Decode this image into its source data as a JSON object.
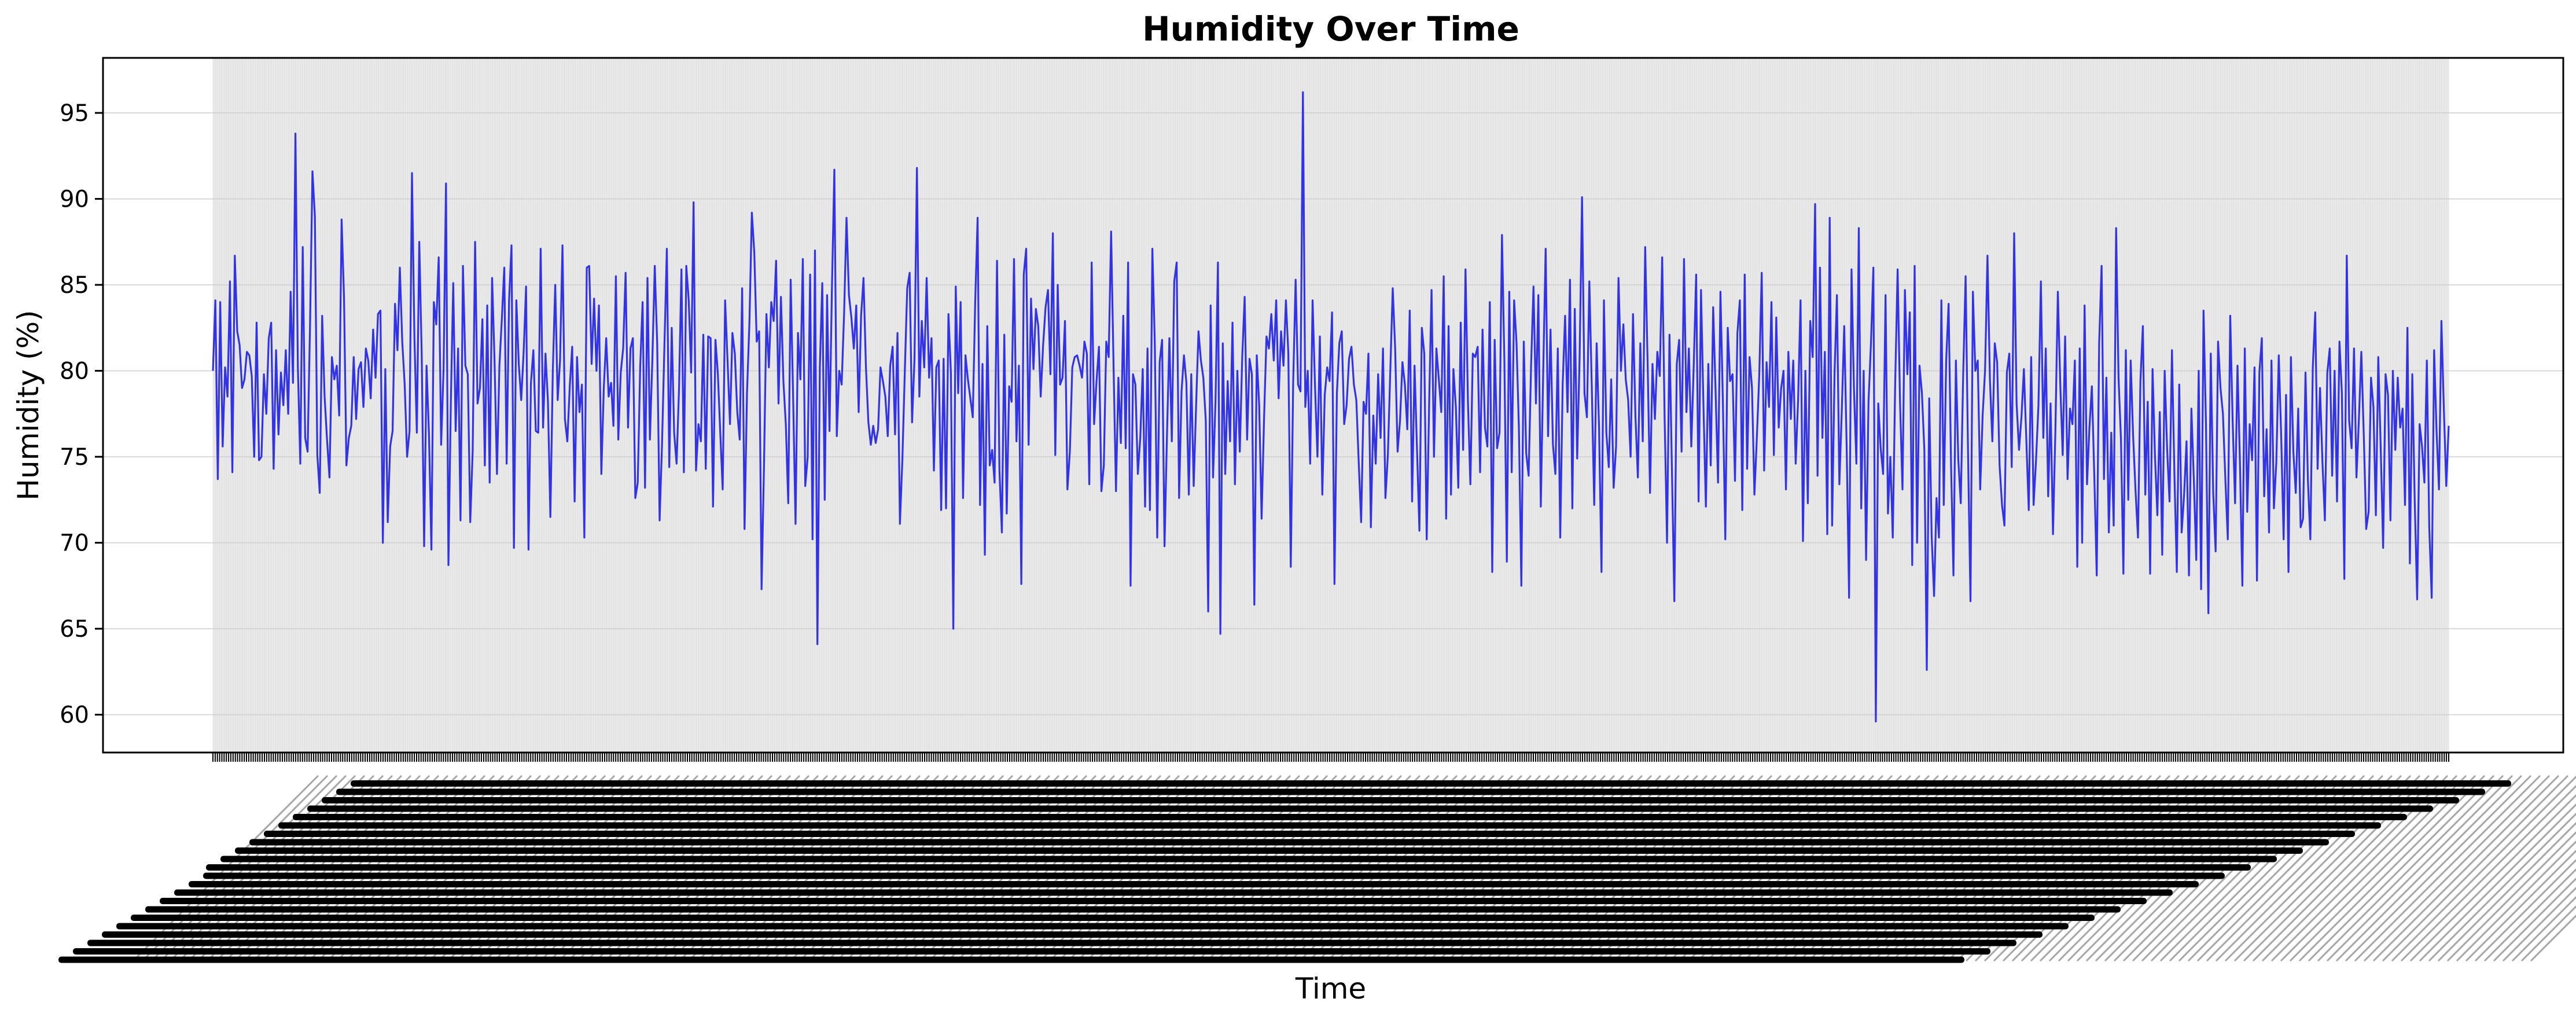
{
  "chart_data": {
    "type": "line",
    "title": "Humidity Over Time",
    "xlabel": "Time",
    "ylabel": "Humidity (%)",
    "ylim": [
      57.8,
      98.2
    ],
    "yticks": [
      60,
      65,
      70,
      75,
      80,
      85,
      90,
      95
    ],
    "grid": true,
    "legend": "none",
    "colors": {
      "line": "#3333e6",
      "plot_background": "#e9e9e9",
      "grid": "#cfcfcf"
    },
    "x_tick_labels_note": "",
    "series": [
      {
        "name": "",
        "values": [
          80.0,
          84.1,
          73.7,
          84.0,
          75.6,
          80.2,
          78.5,
          85.2,
          74.1,
          86.7,
          82.3,
          81.5,
          79.0,
          79.5,
          81.1,
          80.9,
          79.7,
          75.0,
          82.8,
          74.8,
          75.0,
          79.8,
          77.5,
          81.9,
          82.8,
          74.3,
          81.2,
          76.3,
          79.9,
          78.0,
          81.2,
          77.5,
          84.6,
          79.3,
          93.8,
          80.2,
          74.6,
          87.2,
          76.1,
          75.3,
          82.6,
          91.6,
          89.0,
          75.1,
          72.9,
          83.2,
          78.5,
          76.0,
          73.8,
          80.8,
          79.5,
          80.3,
          77.4,
          88.8,
          84.2,
          74.5,
          76.1,
          76.8,
          80.8,
          77.2,
          80.1,
          80.5,
          77.9,
          81.3,
          80.6,
          78.4,
          82.4,
          79.6,
          83.3,
          83.5,
          70.0,
          80.1,
          71.2,
          75.6,
          76.5,
          83.9,
          81.2,
          86.0,
          81.7,
          79.2,
          75.0,
          76.5,
          91.5,
          82.0,
          76.4,
          87.5,
          81.0,
          69.8,
          80.3,
          76.3,
          69.6,
          84.0,
          82.7,
          86.6,
          75.7,
          80.1,
          90.9,
          68.7,
          78.2,
          85.1,
          76.5,
          81.3,
          71.3,
          86.1,
          80.3,
          79.8,
          71.2,
          75.3,
          87.5,
          78.1,
          79.0,
          83.0,
          74.5,
          83.8,
          73.5,
          85.4,
          80.6,
          74.0,
          80.3,
          83.0,
          86.0,
          74.6,
          84.1,
          87.3,
          69.7,
          84.1,
          80.4,
          78.3,
          81.1,
          84.9,
          69.6,
          79.3,
          81.2,
          76.5,
          76.4,
          87.1,
          76.7,
          81.0,
          78.2,
          71.5,
          80.0,
          85.0,
          78.3,
          80.6,
          87.3,
          77.2,
          75.9,
          79.1,
          81.4,
          72.4,
          80.8,
          77.6,
          79.2,
          70.3,
          86.0,
          86.1,
          80.4,
          84.2,
          80.0,
          83.8,
          74.0,
          79.0,
          81.9,
          78.5,
          79.3,
          76.8,
          85.5,
          76.0,
          79.9,
          81.3,
          85.7,
          76.7,
          81.3,
          81.9,
          72.6,
          73.5,
          80.2,
          84.0,
          73.2,
          85.4,
          76.0,
          80.6,
          86.1,
          81.6,
          71.3,
          75.8,
          81.6,
          87.1,
          74.4,
          82.5,
          76.4,
          74.6,
          78.9,
          85.9,
          74.1,
          86.1,
          84.1,
          79.9,
          89.8,
          74.2,
          76.9,
          75.9,
          82.1,
          74.3,
          82.0,
          81.9,
          72.1,
          81.8,
          79.8,
          76.4,
          73.1,
          84.1,
          80.6,
          76.9,
          82.2,
          81.0,
          77.6,
          76.0,
          84.8,
          70.8,
          78.7,
          82.8,
          89.2,
          86.9,
          81.7,
          82.3,
          67.3,
          74.5,
          83.3,
          80.2,
          84.0,
          82.9,
          86.4,
          78.1,
          84.3,
          79.4,
          76.9,
          72.3,
          85.3,
          78.5,
          71.1,
          82.2,
          79.5,
          86.5,
          73.3,
          75.0,
          85.6,
          70.2,
          87.0,
          64.1,
          80.2,
          85.1,
          72.5,
          84.4,
          76.5,
          84.8,
          91.7,
          76.2,
          80.0,
          79.2,
          83.3,
          88.9,
          84.4,
          83.1,
          81.3,
          83.8,
          77.6,
          83.2,
          85.4,
          80.2,
          77.0,
          75.7,
          76.8,
          75.8,
          76.6,
          80.2,
          79.4,
          78.5,
          76.2,
          80.3,
          81.4,
          76.3,
          82.2,
          71.1,
          74.8,
          79.9,
          84.8,
          85.7,
          77.0,
          80.7,
          91.8,
          78.5,
          82.9,
          80.2,
          85.4,
          79.6,
          81.9,
          74.2,
          80.2,
          80.6,
          71.9,
          80.7,
          72.0,
          83.3,
          79.9,
          65.0,
          84.9,
          78.7,
          84.0,
          72.6,
          80.9,
          79.5,
          78.4,
          77.3,
          84.0,
          88.9,
          72.2,
          80.4,
          69.3,
          82.6,
          74.5,
          75.4,
          73.5,
          86.4,
          74.2,
          70.6,
          82.1,
          71.7,
          79.1,
          78.2,
          86.5,
          75.9,
          80.3,
          67.6,
          85.6,
          87.1,
          75.7,
          84.2,
          80.1,
          83.6,
          82.6,
          78.5,
          81.5,
          83.7,
          84.7,
          79.8,
          88.0,
          75.1,
          85.0,
          79.2,
          79.6,
          82.9,
          73.1,
          75.3,
          80.2,
          80.8,
          80.9,
          80.3,
          79.6,
          81.7,
          81.0,
          73.4,
          86.3,
          76.9,
          79.4,
          81.4,
          73.0,
          74.5,
          81.7,
          80.8,
          88.1,
          80.3,
          73.0,
          79.6,
          75.8,
          83.2,
          75.5,
          86.3,
          67.5,
          79.8,
          79.2,
          74.0,
          76.1,
          80.1,
          72.1,
          81.3,
          71.9,
          87.1,
          81.6,
          70.3,
          80.5,
          81.8,
          69.8,
          76.2,
          81.9,
          75.9,
          85.2,
          86.3,
          72.6,
          78.8,
          80.9,
          79.3,
          72.8,
          79.8,
          73.3,
          78.0,
          82.3,
          80.6,
          79.6,
          77.1,
          66.0,
          83.8,
          73.8,
          78.2,
          86.3,
          64.7,
          81.6,
          74.0,
          79.4,
          75.9,
          82.8,
          73.4,
          80.0,
          75.3,
          80.8,
          84.3,
          76.0,
          80.7,
          79.8,
          66.4,
          80.9,
          78.0,
          71.4,
          77.2,
          82.0,
          81.3,
          83.3,
          80.6,
          84.1,
          78.4,
          82.3,
          80.3,
          84.1,
          81.0,
          68.6,
          79.4,
          85.3,
          79.2,
          78.8,
          96.2,
          77.9,
          80.0,
          74.6,
          84.1,
          79.1,
          75.0,
          82.0,
          72.8,
          78.6,
          80.2,
          79.4,
          83.4,
          67.6,
          78.7,
          81.6,
          82.3,
          76.9,
          78.0,
          80.7,
          81.4,
          79.2,
          78.3,
          74.7,
          71.2,
          78.2,
          77.5,
          81.0,
          70.9,
          77.4,
          74.6,
          79.8,
          76.1,
          81.3,
          72.6,
          75.1,
          80.0,
          84.8,
          81.3,
          75.3,
          77.1,
          80.5,
          79.2,
          76.6,
          83.5,
          72.4,
          80.3,
          75.5,
          70.7,
          82.5,
          81.0,
          70.2,
          78.0,
          84.7,
          75.0,
          81.3,
          79.5,
          77.6,
          85.5,
          71.4,
          82.6,
          72.8,
          80.1,
          77.9,
          73.2,
          82.8,
          75.4,
          85.9,
          78.2,
          73.4,
          81.0,
          80.8,
          81.4,
          74.1,
          82.4,
          76.7,
          75.6,
          84.0,
          68.3,
          81.8,
          75.5,
          76.4,
          87.9,
          80.5,
          68.9,
          84.6,
          74.1,
          84.1,
          81.6,
          76.6,
          67.5,
          81.7,
          75.2,
          73.9,
          80.3,
          84.9,
          78.1,
          84.4,
          72.1,
          80.0,
          87.1,
          76.2,
          82.4,
          75.7,
          74.0,
          81.3,
          70.3,
          79.2,
          83.2,
          77.6,
          85.3,
          72.0,
          83.6,
          74.9,
          80.8,
          90.1,
          78.7,
          77.3,
          85.2,
          79.1,
          72.2,
          81.6,
          76.7,
          68.3,
          84.1,
          76.4,
          74.4,
          79.5,
          73.2,
          75.6,
          85.4,
          80.0,
          82.7,
          79.5,
          78.3,
          75.0,
          83.3,
          77.3,
          73.8,
          81.6,
          75.9,
          87.2,
          80.5,
          72.9,
          80.4,
          77.2,
          81.1,
          79.7,
          86.6,
          77.3,
          70.0,
          82.1,
          74.3,
          66.6,
          80.4,
          81.8,
          75.3,
          86.5,
          77.6,
          81.3,
          75.6,
          80.3,
          85.6,
          72.4,
          84.7,
          78.0,
          72.1,
          80.4,
          74.5,
          83.7,
          78.8,
          73.5,
          84.6,
          78.2,
          70.2,
          82.5,
          79.4,
          79.8,
          73.6,
          82.2,
          84.1,
          71.9,
          85.6,
          74.3,
          80.8,
          79.0,
          72.8,
          76.1,
          79.8,
          85.7,
          74.2,
          80.5,
          77.9,
          84.0,
          75.1,
          83.1,
          76.7,
          79.0,
          80.0,
          73.1,
          81.1,
          77.2,
          80.6,
          74.6,
          78.3,
          84.1,
          70.1,
          80.0,
          72.3,
          82.9,
          80.8,
          89.7,
          73.9,
          86.0,
          76.1,
          81.1,
          70.5,
          88.9,
          71.0,
          79.9,
          84.4,
          73.4,
          77.7,
          82.6,
          75.6,
          66.8,
          85.9,
          79.0,
          74.6,
          88.3,
          72.0,
          80.0,
          69.0,
          78.2,
          81.6,
          86.0,
          59.6,
          78.1,
          75.5,
          74.0,
          84.4,
          71.7,
          75.0,
          70.3,
          79.3,
          85.9,
          78.1,
          73.1,
          84.7,
          79.8,
          83.4,
          68.7,
          86.1,
          70.0,
          80.3,
          78.7,
          75.4,
          62.6,
          78.4,
          70.4,
          66.9,
          72.6,
          70.3,
          84.1,
          72.2,
          80.6,
          83.9,
          74.6,
          68.1,
          80.6,
          74.8,
          72.3,
          79.8,
          85.5,
          75.2,
          66.6,
          84.6,
          80.0,
          80.6,
          73.1,
          77.4,
          80.0,
          86.7,
          79.5,
          75.9,
          81.6,
          80.5,
          74.5,
          72.2,
          71.0,
          79.9,
          81.0,
          74.4,
          88.0,
          78.1,
          75.4,
          77.3,
          80.1,
          76.0,
          71.9,
          80.8,
          72.2,
          74.8,
          78.0,
          85.2,
          76.1,
          81.3,
          72.7,
          78.1,
          70.5,
          76.6,
          84.6,
          79.2,
          75.1,
          82.0,
          73.7,
          77.8,
          76.9,
          80.6,
          68.6,
          81.3,
          70.0,
          83.8,
          73.4,
          76.7,
          79.1,
          73.9,
          68.1,
          81.6,
          86.1,
          73.7,
          79.6,
          70.6,
          76.4,
          71.0,
          88.3,
          79.6,
          76.0,
          68.2,
          81.2,
          72.5,
          80.6,
          76.2,
          73.0,
          70.3,
          79.4,
          82.6,
          72.8,
          78.2,
          68.2,
          80.1,
          75.0,
          71.6,
          77.6,
          69.3,
          80.0,
          75.5,
          72.4,
          81.2,
          74.1,
          68.3,
          79.2,
          70.6,
          72.8,
          75.9,
          68.1,
          77.8,
          73.7,
          69.0,
          80.0,
          67.3,
          83.5,
          76.9,
          65.9,
          81.0,
          72.9,
          69.5,
          81.7,
          79.0,
          77.5,
          73.7,
          70.2,
          83.2,
          77.1,
          72.3,
          80.3,
          74.7,
          67.5,
          81.3,
          71.8,
          76.9,
          74.8,
          80.2,
          67.8,
          79.9,
          81.9,
          72.7,
          76.6,
          70.6,
          80.6,
          72.0,
          74.7,
          80.9,
          76.2,
          70.2,
          78.6,
          68.3,
          80.8,
          75.3,
          72.9,
          77.8,
          70.9,
          71.4,
          79.9,
          73.6,
          70.2,
          80.2,
          83.4,
          74.3,
          79.0,
          74.7,
          71.3,
          79.9,
          81.3,
          73.9,
          80.0,
          72.4,
          81.7,
          78.7,
          67.9,
          86.7,
          77.1,
          75.5,
          81.3,
          73.8,
          77.2,
          81.1,
          76.3,
          70.8,
          71.8,
          79.6,
          77.9,
          71.6,
          80.8,
          75.5,
          69.7,
          79.8,
          78.6,
          71.3,
          80.0,
          75.4,
          79.6,
          76.7,
          77.8,
          72.2,
          82.5,
          68.8,
          79.8,
          72.4,
          66.7,
          76.9,
          75.6,
          73.5,
          80.6,
          70.9,
          66.8,
          81.2,
          76.5,
          73.1,
          82.9,
          77.8,
          73.3,
          76.8
        ]
      }
    ]
  },
  "x_tick_count": 1000
}
